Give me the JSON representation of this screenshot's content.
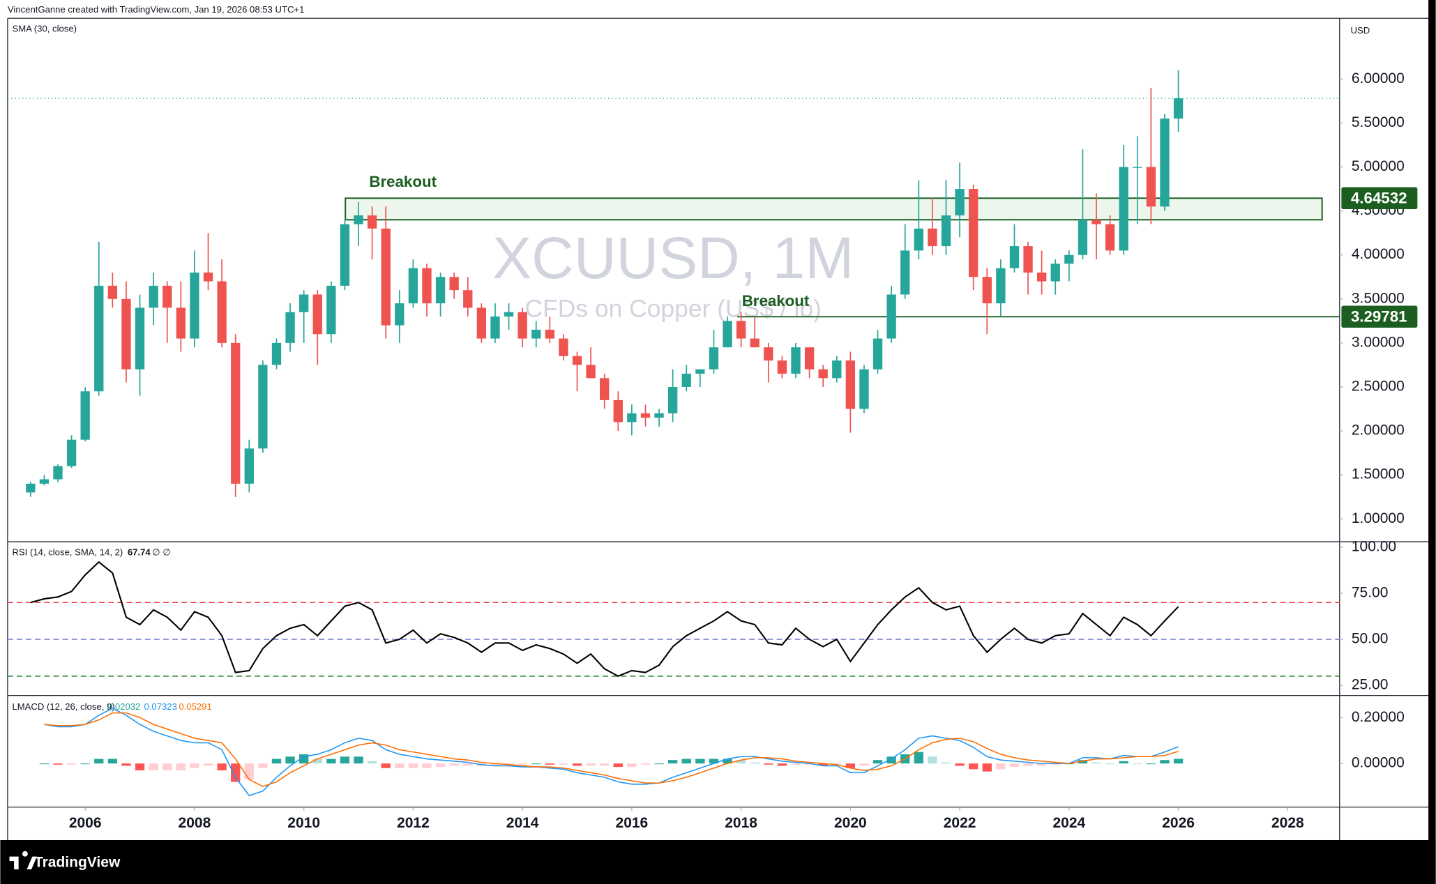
{
  "header": "VincentGanne created with TradingView.com, Jan 19, 2026 08:53 UTC+1",
  "footer": "TradingView",
  "chart_data": [
    {
      "type": "candlestick",
      "symbol": "XCUUSD, 1M",
      "description": "CFDs on Copper (US$ / lb)",
      "indicator": "SMA (30, close)",
      "currency": "USD",
      "up_color": "#26a69a",
      "down_color": "#ef5350",
      "xlim": [
        2004.58,
        2028.95
      ],
      "xticks": [
        2006,
        2008,
        2010,
        2012,
        2014,
        2016,
        2018,
        2020,
        2022,
        2024,
        2026,
        2028
      ],
      "ylim": [
        0.74,
        6.69
      ],
      "yticks": [
        {
          "value": 1,
          "label": "1.00000"
        },
        {
          "value": 1.5,
          "label": "1.50000"
        },
        {
          "value": 2,
          "label": "2.00000"
        },
        {
          "value": 2.5,
          "label": "2.50000"
        },
        {
          "value": 3,
          "label": "3.00000"
        },
        {
          "value": 3.5,
          "label": "3.50000"
        },
        {
          "value": 4,
          "label": "4.00000"
        },
        {
          "value": 4.5,
          "label": "4.50000"
        },
        {
          "value": 5,
          "label": "5.00000"
        },
        {
          "value": 5.5,
          "label": "5.50000"
        },
        {
          "value": 6,
          "label": "6.00000"
        }
      ],
      "x": [
        2005,
        2005.25,
        2005.5,
        2005.75,
        2006,
        2006.25,
        2006.5,
        2006.75,
        2007,
        2007.25,
        2007.5,
        2007.75,
        2008,
        2008.25,
        2008.5,
        2008.75,
        2009,
        2009.25,
        2009.5,
        2009.75,
        2010,
        2010.25,
        2010.5,
        2010.75,
        2011,
        2011.25,
        2011.5,
        2011.75,
        2012,
        2012.25,
        2012.5,
        2012.75,
        2013,
        2013.25,
        2013.5,
        2013.75,
        2014,
        2014.25,
        2014.5,
        2014.75,
        2015,
        2015.25,
        2015.5,
        2015.75,
        2016,
        2016.25,
        2016.5,
        2016.75,
        2017,
        2017.25,
        2017.5,
        2017.75,
        2018,
        2018.25,
        2018.5,
        2018.75,
        2019,
        2019.25,
        2019.5,
        2019.75,
        2020,
        2020.25,
        2020.5,
        2020.75,
        2021,
        2021.25,
        2021.5,
        2021.75,
        2022,
        2022.25,
        2022.5,
        2022.75,
        2023,
        2023.25,
        2023.5,
        2023.75,
        2024,
        2024.25,
        2024.5,
        2024.75,
        2025,
        2025.25,
        2025.5,
        2025.75,
        2026
      ],
      "open": [
        1.3,
        1.4,
        1.45,
        1.6,
        1.9,
        2.45,
        3.65,
        3.5,
        2.7,
        3.4,
        3.65,
        3.4,
        3.05,
        3.8,
        3.7,
        3.0,
        1.4,
        1.8,
        2.75,
        3.0,
        3.35,
        3.55,
        3.1,
        3.65,
        4.35,
        4.45,
        4.3,
        3.2,
        3.45,
        3.85,
        3.45,
        3.75,
        3.6,
        3.4,
        3.05,
        3.3,
        3.35,
        3.05,
        3.15,
        3.05,
        2.85,
        2.75,
        2.6,
        2.35,
        2.1,
        2.2,
        2.15,
        2.2,
        2.5,
        2.65,
        2.7,
        2.95,
        3.25,
        3.05,
        2.95,
        2.8,
        2.65,
        2.95,
        2.7,
        2.6,
        2.8,
        2.25,
        2.7,
        3.05,
        3.55,
        4.05,
        4.3,
        4.1,
        4.45,
        4.75,
        3.75,
        3.45,
        3.85,
        4.1,
        3.8,
        3.7,
        3.9,
        4.0,
        4.4,
        4.35,
        4.05,
        5.0,
        5.0,
        4.55,
        5.55
      ],
      "high": [
        1.42,
        1.5,
        1.62,
        1.95,
        2.5,
        4.15,
        3.8,
        3.7,
        3.55,
        3.8,
        3.7,
        3.7,
        4.05,
        4.25,
        3.95,
        3.1,
        1.9,
        2.8,
        3.05,
        3.45,
        3.6,
        3.6,
        3.7,
        4.4,
        4.6,
        4.55,
        4.55,
        3.6,
        3.95,
        3.9,
        3.8,
        3.8,
        3.75,
        3.45,
        3.45,
        3.45,
        3.4,
        3.25,
        3.3,
        3.1,
        2.9,
        2.95,
        2.65,
        2.45,
        2.3,
        2.3,
        2.25,
        2.7,
        2.75,
        2.7,
        3.15,
        3.3,
        3.35,
        3.3,
        3.0,
        2.85,
        3.0,
        2.95,
        2.75,
        2.85,
        2.9,
        2.75,
        3.15,
        3.65,
        4.35,
        4.85,
        4.65,
        4.85,
        5.05,
        4.8,
        3.85,
        3.95,
        4.35,
        4.15,
        4.05,
        3.95,
        4.05,
        5.2,
        4.7,
        4.45,
        5.25,
        5.35,
        5.9,
        5.6,
        6.1
      ],
      "low": [
        1.25,
        1.38,
        1.42,
        1.58,
        1.88,
        2.4,
        3.4,
        2.55,
        2.4,
        3.2,
        3.0,
        2.9,
        2.95,
        3.6,
        2.95,
        1.25,
        1.3,
        1.75,
        2.7,
        2.9,
        3.0,
        2.75,
        3.0,
        3.6,
        4.1,
        3.95,
        3.05,
        3.0,
        3.4,
        3.3,
        3.3,
        3.5,
        3.3,
        3.0,
        3.0,
        3.15,
        2.95,
        2.95,
        3.0,
        2.8,
        2.45,
        2.6,
        2.25,
        2.0,
        1.95,
        2.05,
        2.05,
        2.1,
        2.45,
        2.5,
        2.65,
        2.95,
        2.95,
        2.95,
        2.55,
        2.6,
        2.6,
        2.6,
        2.5,
        2.55,
        1.98,
        2.2,
        2.65,
        3.0,
        3.5,
        3.95,
        4.0,
        4.0,
        4.2,
        3.6,
        3.1,
        3.3,
        3.8,
        3.55,
        3.55,
        3.55,
        3.7,
        3.95,
        3.95,
        4.0,
        4.0,
        4.35,
        4.35,
        4.5,
        5.4
      ],
      "close": [
        1.4,
        1.45,
        1.6,
        1.9,
        2.45,
        3.65,
        3.5,
        2.7,
        3.4,
        3.65,
        3.4,
        3.05,
        3.8,
        3.7,
        3.0,
        1.4,
        1.8,
        2.75,
        3.0,
        3.35,
        3.55,
        3.1,
        3.65,
        4.35,
        4.45,
        4.3,
        3.2,
        3.45,
        3.85,
        3.45,
        3.75,
        3.6,
        3.4,
        3.05,
        3.3,
        3.35,
        3.05,
        3.15,
        3.05,
        2.85,
        2.75,
        2.6,
        2.35,
        2.1,
        2.2,
        2.15,
        2.2,
        2.5,
        2.65,
        2.7,
        2.95,
        3.25,
        3.05,
        2.95,
        2.8,
        2.65,
        2.95,
        2.7,
        2.6,
        2.8,
        2.25,
        2.7,
        3.05,
        3.55,
        4.05,
        4.3,
        4.1,
        4.45,
        4.75,
        3.75,
        3.45,
        3.85,
        4.1,
        3.8,
        3.7,
        3.9,
        4.0,
        4.4,
        4.35,
        4.05,
        5.0,
        5.0,
        4.55,
        5.55,
        5.78
      ],
      "zones": [
        {
          "from": 2010.76,
          "to": 2028.63,
          "low": 4.4,
          "high": 4.64532
        }
      ],
      "lines": [
        {
          "from": 2017.93,
          "value": 3.29781
        }
      ],
      "level_color": "#1b5e20",
      "annotations": [
        "Breakout",
        "Breakout"
      ]
    },
    {
      "type": "line",
      "title": "RSI (14, close, SMA, 14, 2)",
      "extra": "∅ ∅",
      "color": "#000000",
      "ylim": [
        19.5,
        103
      ],
      "yticks": [
        {
          "value": 25,
          "label": "25.00"
        },
        {
          "value": 50,
          "label": "50.00"
        },
        {
          "value": 75,
          "label": "75.00"
        },
        {
          "value": 100,
          "label": "100.00"
        }
      ],
      "bands": [
        {
          "value": 70,
          "color": "#f23645"
        },
        {
          "value": 50,
          "color": "#7e84d8"
        },
        {
          "value": 30,
          "color": "#1b7d2c"
        }
      ],
      "values": [
        70,
        72,
        73,
        76,
        85,
        92,
        86,
        62,
        58,
        66,
        62,
        55,
        65,
        62,
        52,
        32,
        33,
        45,
        52,
        56,
        58,
        52,
        60,
        68,
        70,
        66,
        48,
        50,
        55,
        48,
        53,
        51,
        48,
        43,
        48,
        48,
        44,
        47,
        45,
        42,
        37,
        42,
        34,
        30,
        33,
        32,
        36,
        46,
        52,
        56,
        60,
        65,
        60,
        58,
        48,
        47,
        56,
        50,
        46,
        50,
        38,
        48,
        58,
        66,
        73,
        78,
        70,
        66,
        68,
        52,
        43,
        50,
        56,
        50,
        48,
        52,
        53,
        64,
        58,
        52,
        62,
        58,
        52,
        60,
        67.74
      ]
    },
    {
      "type": "macd",
      "title": "LMACD (12, 26, close, 9)",
      "ylim": [
        -0.19,
        0.296
      ],
      "yticks": [
        {
          "value": 0,
          "label": "0.00000"
        },
        {
          "value": 0.2,
          "label": "0.20000"
        }
      ],
      "histogram": {
        "up_color": "#26a69a",
        "up_light": "#b2dfdb",
        "down_color": "#ff5252",
        "down_light": "#ffcdd2",
        "values": [
          null,
          0,
          -0.005,
          -0.005,
          0,
          0.02,
          0.02,
          -0.01,
          -0.03,
          -0.03,
          -0.03,
          -0.03,
          -0.02,
          -0.01,
          -0.03,
          -0.08,
          -0.07,
          -0.02,
          0.02,
          0.03,
          0.04,
          0.02,
          0.02,
          0.03,
          0.03,
          0.01,
          -0.02,
          -0.02,
          -0.02,
          -0.02,
          -0.015,
          -0.01,
          -0.01,
          -0.01,
          -0.01,
          -0.005,
          -0.005,
          0,
          -0.005,
          -0.005,
          -0.01,
          -0.01,
          -0.01,
          -0.015,
          -0.015,
          -0.005,
          0,
          0.015,
          0.02,
          0.02,
          0.02,
          0.02,
          0.015,
          0.005,
          -0.005,
          -0.01,
          -0.005,
          -0.005,
          -0.01,
          -0.005,
          -0.02,
          -0.01,
          0.015,
          0.03,
          0.04,
          0.05,
          0.03,
          0.005,
          -0.01,
          -0.025,
          -0.035,
          -0.025,
          -0.015,
          -0.01,
          -0.01,
          -0.005,
          0,
          0.015,
          0.005,
          0,
          0.01,
          0,
          0,
          0.015,
          0.02032
        ]
      },
      "series": [
        {
          "color": "#2196f3",
          "values": [
            null,
            0.17,
            0.16,
            0.16,
            0.17,
            0.21,
            0.24,
            0.21,
            0.17,
            0.14,
            0.12,
            0.1,
            0.09,
            0.09,
            0.06,
            -0.06,
            -0.14,
            -0.12,
            -0.06,
            -0.01,
            0.03,
            0.04,
            0.06,
            0.09,
            0.11,
            0.1,
            0.06,
            0.04,
            0.03,
            0.02,
            0.015,
            0.01,
            0.005,
            -0.005,
            -0.01,
            -0.01,
            -0.015,
            -0.015,
            -0.02,
            -0.025,
            -0.04,
            -0.05,
            -0.06,
            -0.08,
            -0.09,
            -0.09,
            -0.085,
            -0.06,
            -0.04,
            -0.02,
            0,
            0.02,
            0.03,
            0.03,
            0.02,
            0.01,
            0.005,
            0,
            -0.01,
            -0.01,
            -0.04,
            -0.04,
            -0.01,
            0.02,
            0.06,
            0.11,
            0.12,
            0.11,
            0.1,
            0.07,
            0.03,
            0.015,
            0.01,
            0.005,
            0,
            0,
            0,
            0.025,
            0.025,
            0.02,
            0.035,
            0.03,
            0.03,
            0.05,
            0.07323
          ]
        },
        {
          "color": "#ff6d00",
          "values": [
            null,
            0.17,
            0.165,
            0.165,
            0.17,
            0.19,
            0.22,
            0.22,
            0.2,
            0.17,
            0.15,
            0.13,
            0.11,
            0.1,
            0.09,
            0.02,
            -0.07,
            -0.1,
            -0.08,
            -0.04,
            -0.01,
            0.02,
            0.04,
            0.06,
            0.08,
            0.09,
            0.08,
            0.06,
            0.05,
            0.04,
            0.03,
            0.02,
            0.015,
            0.005,
            0,
            -0.005,
            -0.01,
            -0.015,
            -0.015,
            -0.02,
            -0.03,
            -0.04,
            -0.05,
            -0.065,
            -0.075,
            -0.085,
            -0.085,
            -0.075,
            -0.06,
            -0.04,
            -0.02,
            0,
            0.015,
            0.025,
            0.025,
            0.02,
            0.01,
            0.005,
            0,
            -0.005,
            -0.02,
            -0.03,
            -0.025,
            -0.01,
            0.02,
            0.06,
            0.09,
            0.105,
            0.11,
            0.095,
            0.065,
            0.04,
            0.025,
            0.015,
            0.01,
            0.005,
            0,
            0.01,
            0.02,
            0.02,
            0.025,
            0.03,
            0.03,
            0.035,
            0.05291
          ]
        }
      ]
    }
  ]
}
